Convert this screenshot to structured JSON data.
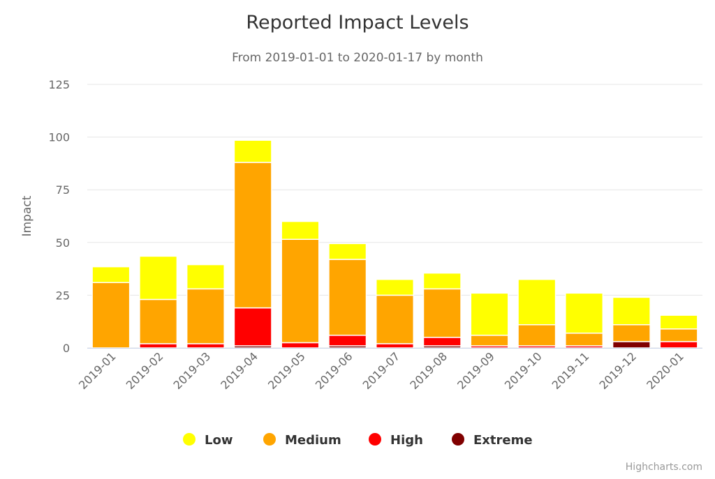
{
  "chart_data": {
    "type": "bar",
    "stacked": true,
    "title": "Reported Impact Levels",
    "subtitle": "From 2019-01-01 to 2020-01-17 by month",
    "xlabel": "",
    "ylabel": "Impact",
    "ylim": [
      0,
      125
    ],
    "yticks": [
      "0",
      "25",
      "50",
      "75",
      "100",
      "125"
    ],
    "grid": true,
    "legend_position": "bottom",
    "categories": [
      "2019-01",
      "2019-02",
      "2019-03",
      "2019-04",
      "2019-05",
      "2019-06",
      "2019-07",
      "2019-08",
      "2019-09",
      "2019-10",
      "2019-11",
      "2019-12",
      "2020-01"
    ],
    "series": [
      {
        "name": "Low",
        "color": "#ffff00",
        "values": [
          7.5,
          20.5,
          11.5,
          10.5,
          8.5,
          7.5,
          7.5,
          7.5,
          20,
          21.5,
          19,
          13,
          6.5
        ]
      },
      {
        "name": "Medium",
        "color": "#ffa500",
        "values": [
          31,
          21,
          26,
          69,
          49,
          36,
          23,
          23,
          5,
          10,
          6,
          8,
          6
        ]
      },
      {
        "name": "High",
        "color": "#ff0000",
        "values": [
          0,
          2,
          2,
          18,
          2.5,
          5,
          2,
          4,
          1,
          1,
          1,
          0,
          3
        ]
      },
      {
        "name": "Extreme",
        "color": "#800000",
        "values": [
          0,
          0,
          0,
          1,
          0,
          1,
          0,
          1,
          0,
          0,
          0,
          3,
          0
        ]
      }
    ]
  },
  "credits": "Highcharts.com"
}
